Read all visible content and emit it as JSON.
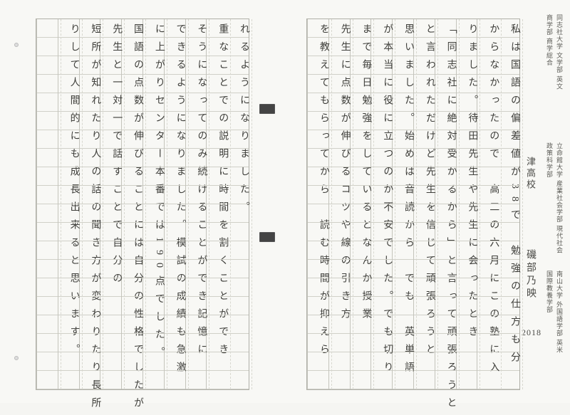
{
  "margin": {
    "line1": "同志社大学 文学部 英文",
    "line2": "商学部 商学総合",
    "line3": "立命館大学 産業社会学部 現代社会",
    "line4": "政策科学部",
    "line5": "南山大学 外国語学部 英米",
    "line6": "国際教養学部"
  },
  "header": {
    "school": "津高校",
    "name": "磯部乃映",
    "year": "2018"
  },
  "columnsRight": [
    "私は国語の偏差値が38で　勉強の仕方も分",
    "からなかったので　高二の六月にこの塾に入",
    "りました。待田先生や先生に会ったとき",
    "「同志社に絶対受かるから」と言って頑張ろうと",
    "と言われただけど先生を信じて頑張ろうと",
    "思いました。始めは音読から　でも　英単語",
    "が本当に役に立つのか不安でした。でも切り",
    "まで毎日勉強をしているとなんか授業",
    "先生に点数が伸びるコツや線の引き方",
    "を教えてもらってから　読む時間が抑えら"
  ],
  "columnsLeft": [
    "れるようになりました。",
    "重なことでの説明に時間を割くことができ",
    "そうになってのみ続けることができ記憶に",
    "できるようになりました。模試の成績も急激",
    "に上がりセンター本番では190点でした。",
    "国語の点数が伸びることには自分の性格でしたが",
    "先生と一対一で話すことで自分の",
    "短所が知れたり人の話の聞き方が変わりたり長所",
    "りして人間的にも成長出来ると思います。"
  ],
  "layout": {
    "colsPerSheet": 10,
    "colWidthPx": 30
  },
  "colors": {
    "paper": "#f8f8f5",
    "rule": "#c4c4bc",
    "ink": "#3e3e3a"
  }
}
